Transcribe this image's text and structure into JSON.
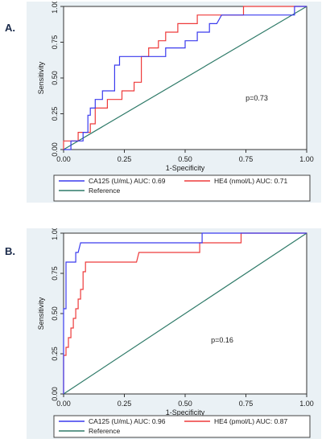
{
  "chart_data": [
    {
      "panel_label": "A.",
      "type": "line",
      "xlabel": "1-Specificity",
      "ylabel": "Sensitivity",
      "xlim": [
        0,
        1
      ],
      "ylim": [
        0,
        1
      ],
      "x_ticks": [
        "0.00",
        "0.25",
        "0.50",
        "0.75",
        "1.00"
      ],
      "y_ticks": [
        "0.00",
        "0.25",
        "0.50",
        "0.75",
        "1.00"
      ],
      "grid": false,
      "legend_position": "bottom",
      "annotation": "p=0.73",
      "series": [
        {
          "name": "CA125 (U/mL) AUC: 0.69",
          "color": "#3a3aee",
          "points": [
            [
              0,
              0
            ],
            [
              0.03,
              0
            ],
            [
              0.03,
              0.06
            ],
            [
              0.08,
              0.06
            ],
            [
              0.08,
              0.12
            ],
            [
              0.1,
              0.12
            ],
            [
              0.1,
              0.24
            ],
            [
              0.11,
              0.24
            ],
            [
              0.11,
              0.29
            ],
            [
              0.13,
              0.29
            ],
            [
              0.13,
              0.35
            ],
            [
              0.16,
              0.35
            ],
            [
              0.16,
              0.41
            ],
            [
              0.21,
              0.41
            ],
            [
              0.21,
              0.59
            ],
            [
              0.23,
              0.59
            ],
            [
              0.23,
              0.65
            ],
            [
              0.34,
              0.65
            ],
            [
              0.34,
              0.65
            ],
            [
              0.42,
              0.65
            ],
            [
              0.42,
              0.71
            ],
            [
              0.5,
              0.71
            ],
            [
              0.5,
              0.76
            ],
            [
              0.55,
              0.76
            ],
            [
              0.55,
              0.82
            ],
            [
              0.6,
              0.82
            ],
            [
              0.6,
              0.88
            ],
            [
              0.63,
              0.88
            ],
            [
              0.65,
              0.94
            ],
            [
              0.95,
              0.94
            ],
            [
              0.95,
              1
            ],
            [
              1,
              1
            ]
          ]
        },
        {
          "name": "HE4 (nmol/L) AUC: 0.71",
          "color": "#ee3a3a",
          "points": [
            [
              0,
              0
            ],
            [
              0,
              0.06
            ],
            [
              0.06,
              0.06
            ],
            [
              0.06,
              0.12
            ],
            [
              0.11,
              0.12
            ],
            [
              0.11,
              0.18
            ],
            [
              0.13,
              0.18
            ],
            [
              0.13,
              0.29
            ],
            [
              0.18,
              0.29
            ],
            [
              0.18,
              0.35
            ],
            [
              0.24,
              0.35
            ],
            [
              0.24,
              0.41
            ],
            [
              0.29,
              0.41
            ],
            [
              0.29,
              0.47
            ],
            [
              0.32,
              0.47
            ],
            [
              0.32,
              0.65
            ],
            [
              0.35,
              0.65
            ],
            [
              0.35,
              0.71
            ],
            [
              0.39,
              0.71
            ],
            [
              0.39,
              0.76
            ],
            [
              0.42,
              0.76
            ],
            [
              0.42,
              0.82
            ],
            [
              0.47,
              0.82
            ],
            [
              0.47,
              0.88
            ],
            [
              0.55,
              0.88
            ],
            [
              0.55,
              0.94
            ],
            [
              0.74,
              0.94
            ],
            [
              0.74,
              1
            ],
            [
              1,
              1
            ]
          ]
        },
        {
          "name": "Reference",
          "color": "#2e7a68",
          "points": [
            [
              0,
              0
            ],
            [
              1,
              1
            ]
          ]
        }
      ]
    },
    {
      "panel_label": "B.",
      "type": "line",
      "xlabel": "1-Specificity",
      "ylabel": "Sensitivity",
      "xlim": [
        0,
        1
      ],
      "ylim": [
        0,
        1
      ],
      "x_ticks": [
        "0.00",
        "0.25",
        "0.50",
        "0.75",
        "1.00"
      ],
      "y_ticks": [
        "0.00",
        "0.25",
        "0.50",
        "0.75",
        "1.00"
      ],
      "grid": false,
      "legend_position": "bottom",
      "annotation": "p=0.16",
      "series": [
        {
          "name": "CA125 (U/mL) AUC: 0.96",
          "color": "#3a3aee",
          "points": [
            [
              0,
              0
            ],
            [
              0,
              0.53
            ],
            [
              0.01,
              0.53
            ],
            [
              0.01,
              0.82
            ],
            [
              0.05,
              0.82
            ],
            [
              0.05,
              0.88
            ],
            [
              0.06,
              0.88
            ],
            [
              0.07,
              0.94
            ],
            [
              0.57,
              0.94
            ],
            [
              0.57,
              1
            ],
            [
              1,
              1
            ]
          ]
        },
        {
          "name": "HE4 (pmol/L) AUC: 0.87",
          "color": "#ee3a3a",
          "points": [
            [
              0,
              0
            ],
            [
              0,
              0.24
            ],
            [
              0.01,
              0.24
            ],
            [
              0.01,
              0.29
            ],
            [
              0.02,
              0.29
            ],
            [
              0.02,
              0.35
            ],
            [
              0.03,
              0.35
            ],
            [
              0.03,
              0.41
            ],
            [
              0.04,
              0.41
            ],
            [
              0.04,
              0.47
            ],
            [
              0.05,
              0.47
            ],
            [
              0.05,
              0.53
            ],
            [
              0.06,
              0.53
            ],
            [
              0.06,
              0.59
            ],
            [
              0.07,
              0.59
            ],
            [
              0.07,
              0.65
            ],
            [
              0.08,
              0.65
            ],
            [
              0.08,
              0.76
            ],
            [
              0.09,
              0.76
            ],
            [
              0.09,
              0.82
            ],
            [
              0.3,
              0.82
            ],
            [
              0.31,
              0.88
            ],
            [
              0.56,
              0.88
            ],
            [
              0.56,
              0.94
            ],
            [
              0.73,
              0.94
            ],
            [
              0.73,
              1
            ],
            [
              1,
              1
            ]
          ]
        },
        {
          "name": "Reference",
          "color": "#2e7a68",
          "points": [
            [
              0,
              0
            ],
            [
              1,
              1
            ]
          ]
        }
      ]
    }
  ]
}
